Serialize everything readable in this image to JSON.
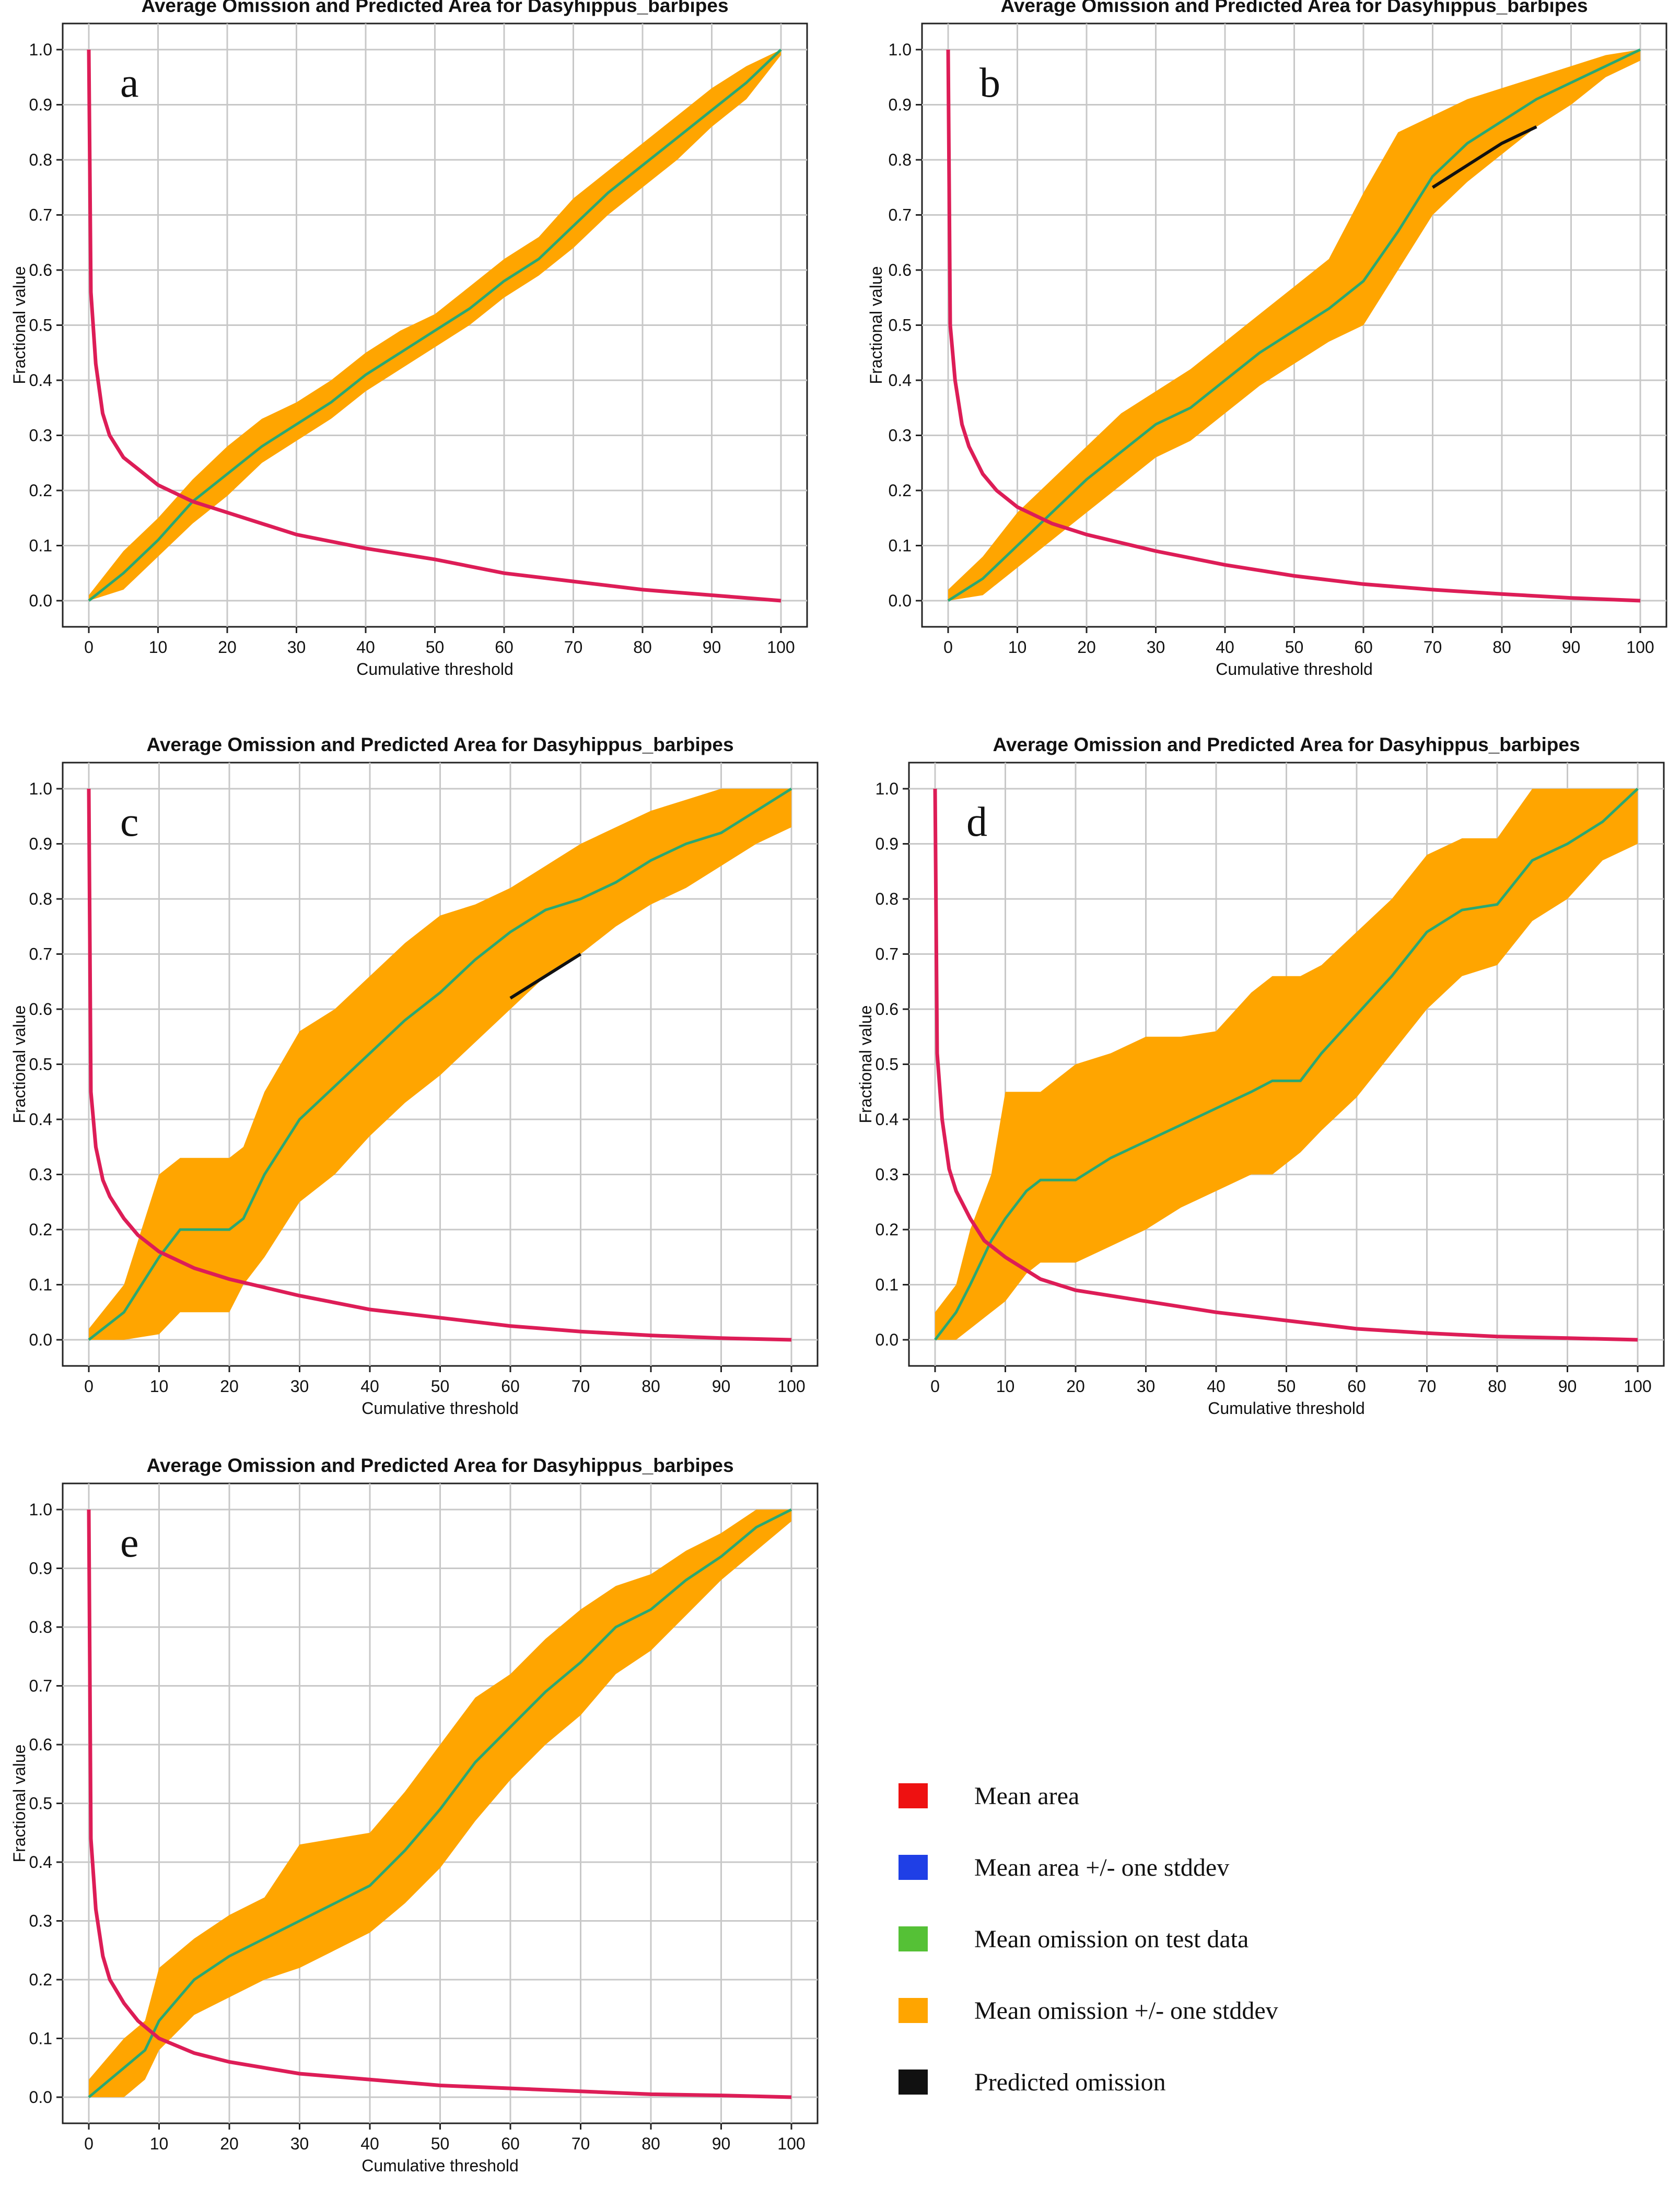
{
  "legend": {
    "items": [
      {
        "label": "Mean area",
        "color": "#ee1111"
      },
      {
        "label": "Mean area +/- one stddev",
        "color": "#1f3fe6"
      },
      {
        "label": "Mean omission on test data",
        "color": "#55c136"
      },
      {
        "label": "Mean omission +/- one stddev",
        "color": "#ffa500"
      },
      {
        "label": "Predicted omission",
        "color": "#111111"
      }
    ]
  },
  "colors": {
    "mean_area_line": "#dd1d57",
    "mean_omission_line": "#2aa872",
    "omission_band": "#ffa500",
    "predicted_omission": "#111111",
    "grid": "#c8c8c8"
  },
  "chart_data": [
    {
      "panel": "a",
      "type": "line",
      "title": "Average Omission and Predicted Area for Dasyhippus_barbipes",
      "xlabel": "Cumulative threshold",
      "ylabel": "Fractional value",
      "xlim": [
        0,
        100
      ],
      "ylim": [
        0,
        1
      ],
      "xticks": [
        "0",
        "10",
        "20",
        "30",
        "40",
        "50",
        "60",
        "70",
        "80",
        "90",
        "100"
      ],
      "yticks": [
        "0.0",
        "0.1",
        "0.2",
        "0.3",
        "0.4",
        "0.5",
        "0.6",
        "0.7",
        "0.8",
        "0.9",
        "1.0"
      ],
      "grid": true,
      "series": [
        {
          "name": "Mean omission on test data",
          "x": [
            0,
            5,
            10,
            15,
            20,
            25,
            30,
            35,
            40,
            45,
            50,
            55,
            60,
            65,
            70,
            75,
            80,
            85,
            90,
            95,
            100
          ],
          "y": [
            0,
            0.05,
            0.11,
            0.18,
            0.23,
            0.28,
            0.32,
            0.36,
            0.41,
            0.45,
            0.49,
            0.53,
            0.58,
            0.62,
            0.68,
            0.74,
            0.79,
            0.84,
            0.89,
            0.94,
            1.0
          ]
        },
        {
          "name": "Mean omission +/- one stddev",
          "x": [
            0,
            5,
            10,
            15,
            20,
            25,
            30,
            35,
            40,
            45,
            50,
            55,
            60,
            65,
            70,
            75,
            80,
            85,
            90,
            95,
            100
          ],
          "lower": [
            0,
            0.02,
            0.08,
            0.14,
            0.19,
            0.25,
            0.29,
            0.33,
            0.38,
            0.42,
            0.46,
            0.5,
            0.55,
            0.59,
            0.64,
            0.7,
            0.75,
            0.8,
            0.86,
            0.91,
            0.99
          ],
          "upper": [
            0.01,
            0.09,
            0.15,
            0.22,
            0.28,
            0.33,
            0.36,
            0.4,
            0.45,
            0.49,
            0.52,
            0.57,
            0.62,
            0.66,
            0.73,
            0.78,
            0.83,
            0.88,
            0.93,
            0.97,
            1.0
          ]
        },
        {
          "name": "Mean area",
          "x": [
            0,
            0.3,
            1,
            2,
            3,
            5,
            7,
            10,
            15,
            20,
            30,
            40,
            50,
            60,
            70,
            80,
            90,
            100
          ],
          "y": [
            1.0,
            0.56,
            0.43,
            0.34,
            0.3,
            0.26,
            0.24,
            0.21,
            0.18,
            0.16,
            0.12,
            0.095,
            0.075,
            0.05,
            0.035,
            0.02,
            0.01,
            0
          ]
        }
      ]
    },
    {
      "panel": "b",
      "type": "line",
      "title": "Average Omission and Predicted Area for Dasyhippus_barbipes",
      "xlabel": "Cumulative threshold",
      "ylabel": "Fractional value",
      "xlim": [
        0,
        100
      ],
      "ylim": [
        0,
        1
      ],
      "xticks": [
        "0",
        "10",
        "20",
        "30",
        "40",
        "50",
        "60",
        "70",
        "80",
        "90",
        "100"
      ],
      "yticks": [
        "0.0",
        "0.1",
        "0.2",
        "0.3",
        "0.4",
        "0.5",
        "0.6",
        "0.7",
        "0.8",
        "0.9",
        "1.0"
      ],
      "grid": true,
      "series": [
        {
          "name": "Mean omission on test data",
          "x": [
            0,
            5,
            10,
            15,
            20,
            25,
            30,
            35,
            40,
            45,
            50,
            55,
            60,
            65,
            70,
            75,
            80,
            85,
            90,
            95,
            100
          ],
          "y": [
            0,
            0.04,
            0.1,
            0.16,
            0.22,
            0.27,
            0.32,
            0.35,
            0.4,
            0.45,
            0.49,
            0.53,
            0.58,
            0.67,
            0.77,
            0.83,
            0.87,
            0.91,
            0.94,
            0.97,
            1.0
          ]
        },
        {
          "name": "Mean omission +/- one stddev",
          "x": [
            0,
            5,
            10,
            15,
            20,
            25,
            30,
            35,
            40,
            45,
            50,
            55,
            60,
            65,
            70,
            75,
            80,
            85,
            90,
            95,
            100
          ],
          "lower": [
            0,
            0.01,
            0.06,
            0.11,
            0.16,
            0.21,
            0.26,
            0.29,
            0.34,
            0.39,
            0.43,
            0.47,
            0.5,
            0.6,
            0.7,
            0.76,
            0.81,
            0.86,
            0.9,
            0.95,
            0.98
          ],
          "upper": [
            0.02,
            0.08,
            0.16,
            0.22,
            0.28,
            0.34,
            0.38,
            0.42,
            0.47,
            0.52,
            0.57,
            0.62,
            0.74,
            0.85,
            0.88,
            0.91,
            0.93,
            0.95,
            0.97,
            0.99,
            1.0
          ]
        },
        {
          "name": "Predicted omission",
          "x": [
            70,
            75,
            80,
            85
          ],
          "y": [
            0.75,
            0.79,
            0.83,
            0.86
          ]
        },
        {
          "name": "Mean area",
          "x": [
            0,
            0.3,
            1,
            2,
            3,
            5,
            7,
            10,
            15,
            20,
            30,
            40,
            50,
            60,
            70,
            80,
            90,
            100
          ],
          "y": [
            1.0,
            0.5,
            0.4,
            0.32,
            0.28,
            0.23,
            0.2,
            0.17,
            0.14,
            0.12,
            0.09,
            0.065,
            0.045,
            0.03,
            0.02,
            0.012,
            0.005,
            0
          ]
        }
      ]
    },
    {
      "panel": "c",
      "type": "line",
      "title": "Average Omission and Predicted Area for Dasyhippus_barbipes",
      "xlabel": "Cumulative threshold",
      "ylabel": "Fractional value",
      "xlim": [
        0,
        100
      ],
      "ylim": [
        0,
        1
      ],
      "xticks": [
        "0",
        "10",
        "20",
        "30",
        "40",
        "50",
        "60",
        "70",
        "80",
        "90",
        "100"
      ],
      "yticks": [
        "0.0",
        "0.1",
        "0.2",
        "0.3",
        "0.4",
        "0.5",
        "0.6",
        "0.7",
        "0.8",
        "0.9",
        "1.0"
      ],
      "grid": true,
      "series": [
        {
          "name": "Mean omission on test data",
          "x": [
            0,
            5,
            10,
            13,
            15,
            20,
            22,
            25,
            30,
            35,
            40,
            45,
            50,
            55,
            60,
            65,
            70,
            75,
            80,
            85,
            90,
            95,
            100
          ],
          "y": [
            0,
            0.05,
            0.15,
            0.2,
            0.2,
            0.2,
            0.22,
            0.3,
            0.4,
            0.46,
            0.52,
            0.58,
            0.63,
            0.69,
            0.74,
            0.78,
            0.8,
            0.83,
            0.87,
            0.9,
            0.92,
            0.96,
            1.0
          ]
        },
        {
          "name": "Mean omission +/- one stddev",
          "x": [
            0,
            5,
            10,
            13,
            15,
            20,
            22,
            25,
            30,
            35,
            40,
            45,
            50,
            55,
            60,
            65,
            70,
            75,
            80,
            85,
            90,
            95,
            100
          ],
          "lower": [
            0,
            0,
            0.01,
            0.05,
            0.05,
            0.05,
            0.1,
            0.15,
            0.25,
            0.3,
            0.37,
            0.43,
            0.48,
            0.54,
            0.6,
            0.66,
            0.7,
            0.75,
            0.79,
            0.82,
            0.86,
            0.9,
            0.93
          ],
          "upper": [
            0.02,
            0.1,
            0.3,
            0.33,
            0.33,
            0.33,
            0.35,
            0.45,
            0.56,
            0.6,
            0.66,
            0.72,
            0.77,
            0.79,
            0.82,
            0.86,
            0.9,
            0.93,
            0.96,
            0.98,
            1.0,
            1.0,
            1.0
          ]
        },
        {
          "name": "Predicted omission",
          "x": [
            60,
            65,
            70
          ],
          "y": [
            0.62,
            0.66,
            0.7
          ]
        },
        {
          "name": "Mean area",
          "x": [
            0,
            0.3,
            1,
            2,
            3,
            5,
            7,
            10,
            15,
            20,
            30,
            40,
            50,
            60,
            70,
            80,
            90,
            100
          ],
          "y": [
            1.0,
            0.45,
            0.35,
            0.29,
            0.26,
            0.22,
            0.19,
            0.16,
            0.13,
            0.11,
            0.08,
            0.055,
            0.04,
            0.025,
            0.015,
            0.008,
            0.003,
            0
          ]
        }
      ]
    },
    {
      "panel": "d",
      "type": "line",
      "title": "Average Omission and Predicted Area for Dasyhippus_barbipes",
      "xlabel": "Cumulative threshold",
      "ylabel": "Fractional value",
      "xlim": [
        0,
        100
      ],
      "ylim": [
        0,
        1
      ],
      "xticks": [
        "0",
        "10",
        "20",
        "30",
        "40",
        "50",
        "60",
        "70",
        "80",
        "90",
        "100"
      ],
      "yticks": [
        "0.0",
        "0.1",
        "0.2",
        "0.3",
        "0.4",
        "0.5",
        "0.6",
        "0.7",
        "0.8",
        "0.9",
        "1.0"
      ],
      "grid": true,
      "series": [
        {
          "name": "Mean omission on test data",
          "x": [
            0,
            3,
            5,
            8,
            10,
            13,
            15,
            20,
            25,
            30,
            35,
            40,
            45,
            48,
            52,
            55,
            60,
            65,
            70,
            75,
            80,
            85,
            90,
            95,
            100
          ],
          "y": [
            0,
            0.05,
            0.1,
            0.18,
            0.22,
            0.27,
            0.29,
            0.29,
            0.33,
            0.36,
            0.39,
            0.42,
            0.45,
            0.47,
            0.47,
            0.52,
            0.59,
            0.66,
            0.74,
            0.78,
            0.79,
            0.87,
            0.9,
            0.94,
            1.0
          ]
        },
        {
          "name": "Mean omission +/- one stddev",
          "x": [
            0,
            3,
            5,
            8,
            10,
            13,
            15,
            20,
            25,
            30,
            35,
            40,
            45,
            48,
            52,
            55,
            60,
            65,
            70,
            75,
            80,
            85,
            90,
            95,
            100
          ],
          "lower": [
            0,
            0,
            0.02,
            0.05,
            0.07,
            0.12,
            0.14,
            0.14,
            0.17,
            0.2,
            0.24,
            0.27,
            0.3,
            0.3,
            0.34,
            0.38,
            0.44,
            0.52,
            0.6,
            0.66,
            0.68,
            0.76,
            0.8,
            0.87,
            0.9
          ],
          "upper": [
            0.05,
            0.1,
            0.2,
            0.3,
            0.45,
            0.45,
            0.45,
            0.5,
            0.52,
            0.55,
            0.55,
            0.56,
            0.63,
            0.66,
            0.66,
            0.68,
            0.74,
            0.8,
            0.88,
            0.91,
            0.91,
            1.0,
            1.0,
            1.0,
            1.0
          ]
        },
        {
          "name": "Mean area",
          "x": [
            0,
            0.3,
            1,
            2,
            3,
            5,
            7,
            10,
            15,
            20,
            30,
            40,
            50,
            60,
            70,
            80,
            90,
            100
          ],
          "y": [
            1.0,
            0.52,
            0.4,
            0.31,
            0.27,
            0.22,
            0.18,
            0.15,
            0.11,
            0.09,
            0.07,
            0.05,
            0.035,
            0.02,
            0.012,
            0.006,
            0.003,
            0
          ]
        }
      ]
    },
    {
      "panel": "e",
      "type": "line",
      "title": "Average Omission and Predicted Area for Dasyhippus_barbipes",
      "xlabel": "Cumulative threshold",
      "ylabel": "Fractional value",
      "xlim": [
        0,
        100
      ],
      "ylim": [
        0,
        1
      ],
      "xticks": [
        "0",
        "10",
        "20",
        "30",
        "40",
        "50",
        "60",
        "70",
        "80",
        "90",
        "100"
      ],
      "yticks": [
        "0.0",
        "0.1",
        "0.2",
        "0.3",
        "0.4",
        "0.5",
        "0.6",
        "0.7",
        "0.8",
        "0.9",
        "1.0"
      ],
      "grid": true,
      "series": [
        {
          "name": "Mean omission on test data",
          "x": [
            0,
            5,
            8,
            10,
            15,
            20,
            25,
            30,
            35,
            40,
            45,
            50,
            55,
            60,
            65,
            70,
            75,
            80,
            85,
            90,
            95,
            100
          ],
          "y": [
            0,
            0.05,
            0.08,
            0.13,
            0.2,
            0.24,
            0.27,
            0.3,
            0.33,
            0.36,
            0.42,
            0.49,
            0.57,
            0.63,
            0.69,
            0.74,
            0.8,
            0.83,
            0.88,
            0.92,
            0.97,
            1.0
          ]
        },
        {
          "name": "Mean omission +/- one stddev",
          "x": [
            0,
            5,
            8,
            10,
            15,
            20,
            25,
            30,
            35,
            40,
            45,
            50,
            55,
            60,
            65,
            70,
            75,
            80,
            85,
            90,
            95,
            100
          ],
          "lower": [
            0,
            0,
            0.03,
            0.08,
            0.14,
            0.17,
            0.2,
            0.22,
            0.25,
            0.28,
            0.33,
            0.39,
            0.47,
            0.54,
            0.6,
            0.65,
            0.72,
            0.76,
            0.82,
            0.88,
            0.93,
            0.98
          ],
          "upper": [
            0.03,
            0.1,
            0.13,
            0.22,
            0.27,
            0.31,
            0.34,
            0.43,
            0.44,
            0.45,
            0.52,
            0.6,
            0.68,
            0.72,
            0.78,
            0.83,
            0.87,
            0.89,
            0.93,
            0.96,
            1.0,
            1.0
          ]
        },
        {
          "name": "Mean area",
          "x": [
            0,
            0.3,
            1,
            2,
            3,
            5,
            7,
            10,
            15,
            20,
            30,
            40,
            50,
            60,
            70,
            80,
            90,
            100
          ],
          "y": [
            1.0,
            0.44,
            0.32,
            0.24,
            0.2,
            0.16,
            0.13,
            0.1,
            0.075,
            0.06,
            0.04,
            0.03,
            0.02,
            0.015,
            0.01,
            0.005,
            0.003,
            0
          ]
        }
      ]
    }
  ],
  "panel_letters": [
    "a",
    "b",
    "c",
    "d",
    "e"
  ]
}
